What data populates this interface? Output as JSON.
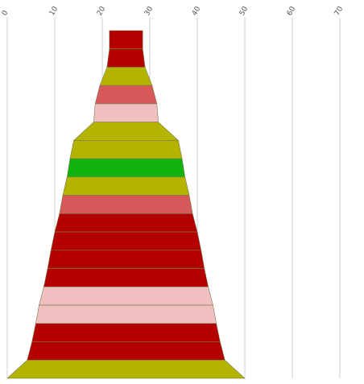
{
  "chart_data": {
    "type": "funnel",
    "title": "",
    "xlabel": "",
    "ylabel": "",
    "xlim": [
      0,
      70
    ],
    "xticks": [
      "0",
      "10",
      "20",
      "30",
      "40",
      "50",
      "60",
      "70"
    ],
    "grid": true,
    "legend": "none",
    "centre": 25,
    "segments": [
      {
        "half_width": 3.5,
        "color": "#b30000"
      },
      {
        "half_width": 4.0,
        "color": "#b30000"
      },
      {
        "half_width": 5.5,
        "color": "#b3b300"
      },
      {
        "half_width": 6.5,
        "color": "#d65858"
      },
      {
        "half_width": 6.8,
        "color": "#f0c0c0"
      },
      {
        "half_width": 11.0,
        "color": "#b3b300"
      },
      {
        "half_width": 11.8,
        "color": "#b3b300"
      },
      {
        "half_width": 12.4,
        "color": "#11b311"
      },
      {
        "half_width": 13.3,
        "color": "#b3b300"
      },
      {
        "half_width": 14.0,
        "color": "#d65858"
      },
      {
        "half_width": 15.0,
        "color": "#b30000"
      },
      {
        "half_width": 15.8,
        "color": "#b30000"
      },
      {
        "half_width": 16.5,
        "color": "#b30000"
      },
      {
        "half_width": 17.3,
        "color": "#b30000"
      },
      {
        "half_width": 18.3,
        "color": "#f0c0c0"
      },
      {
        "half_width": 19.0,
        "color": "#f0c0c0"
      },
      {
        "half_width": 19.8,
        "color": "#b30000"
      },
      {
        "half_width": 20.8,
        "color": "#b30000"
      },
      {
        "half_width": 25.0,
        "color": "#b3b300"
      }
    ]
  }
}
